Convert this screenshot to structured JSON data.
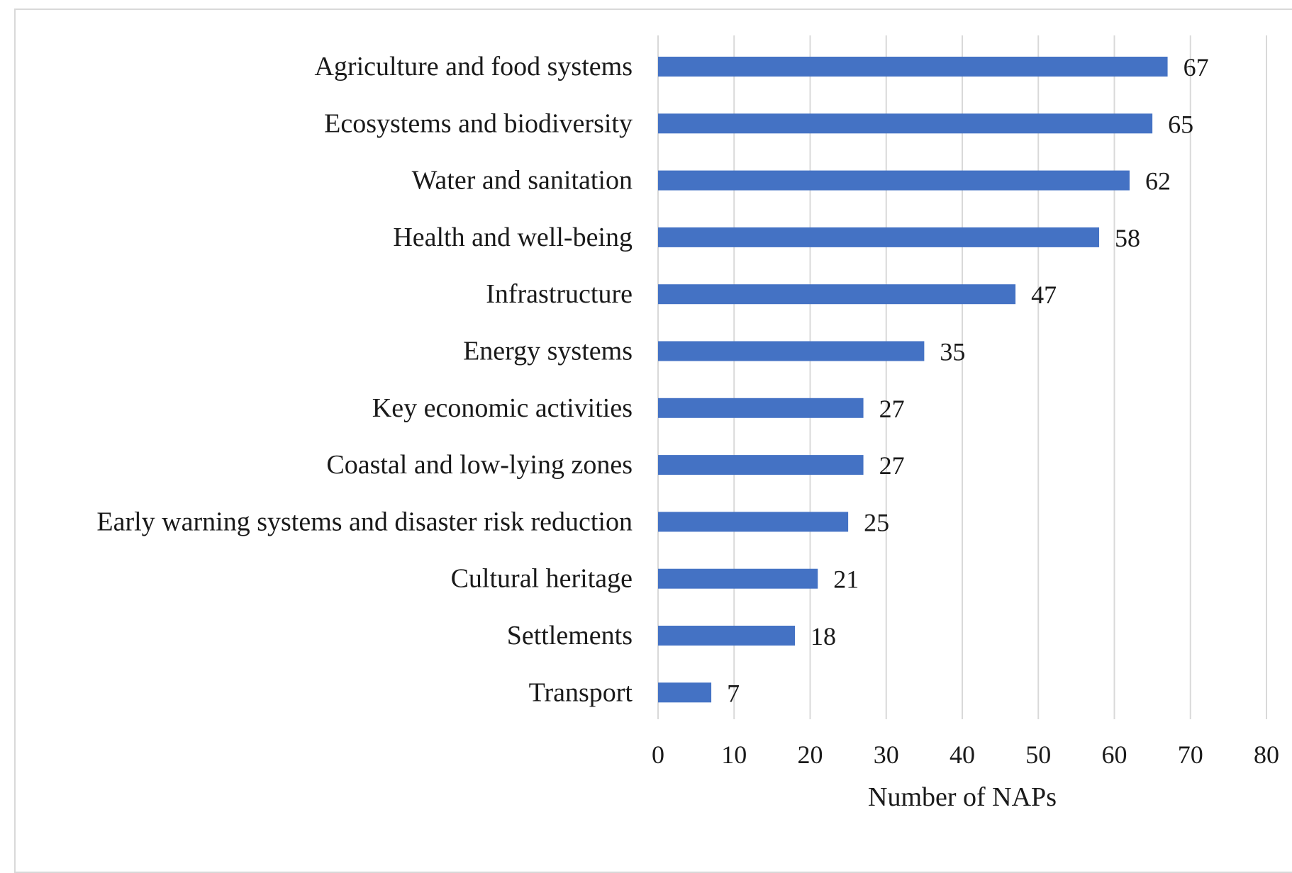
{
  "chart_data": {
    "type": "bar",
    "orientation": "horizontal",
    "title": "",
    "xlabel": "Number of NAPs",
    "ylabel": "",
    "xlim": [
      0,
      80
    ],
    "xticks": [
      "0",
      "10",
      "20",
      "30",
      "40",
      "50",
      "60",
      "70",
      "80"
    ],
    "grid": "vertical",
    "legend": "none",
    "bar_color": "#4472C4",
    "grid_color": "#d9d9d9",
    "categories": [
      "Agriculture and food systems",
      "Ecosystems and biodiversity",
      "Water and sanitation",
      "Health and well-being",
      "Infrastructure",
      "Energy systems",
      "Key economic activities",
      "Coastal and low-lying zones",
      "Early warning systems and disaster risk reduction",
      "Cultural heritage",
      "Settlements",
      "Transport"
    ],
    "values": [
      67,
      65,
      62,
      58,
      47,
      35,
      27,
      27,
      25,
      21,
      18,
      7
    ]
  }
}
